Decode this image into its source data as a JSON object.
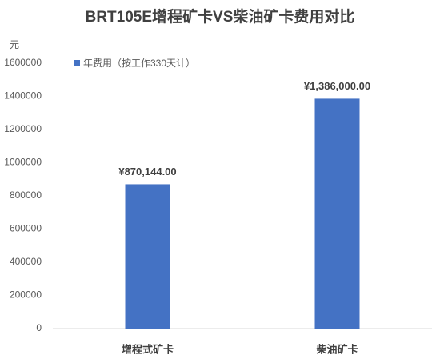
{
  "chart_data": {
    "type": "bar",
    "title": "BRT105E增程矿卡VS柴油矿卡费用对比",
    "y_label": "元",
    "categories": [
      "增程式矿卡",
      "柴油矿卡"
    ],
    "series": [
      {
        "name": "年费用（按工作330天计）",
        "color": "#4472c4",
        "values": [
          870144,
          1386000
        ],
        "value_labels": [
          "¥870,144.00",
          "¥1,386,000.00"
        ]
      }
    ],
    "ylim": [
      0,
      1600000
    ],
    "yticks": [
      0,
      200000,
      400000,
      600000,
      800000,
      1000000,
      1200000,
      1400000,
      1600000
    ],
    "grid": false,
    "legend": "top-left"
  }
}
